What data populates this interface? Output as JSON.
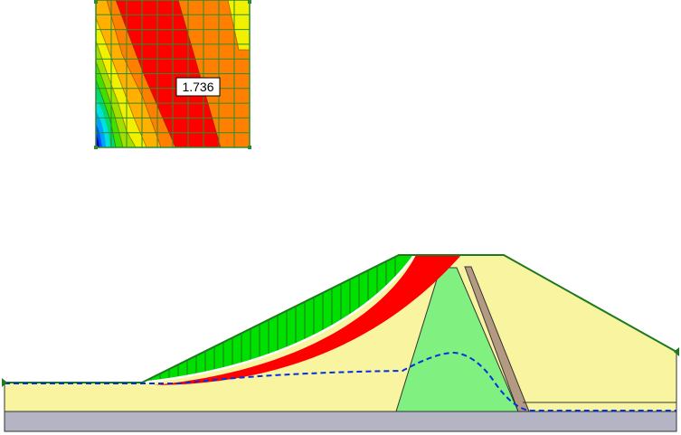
{
  "grid_panel": {
    "factor_of_safety_label": "1.736",
    "contour_colors": [
      "#0000c8",
      "#0050ff",
      "#00a0ff",
      "#00e0e0",
      "#00d870",
      "#40e000",
      "#a0e000",
      "#f0f000",
      "#ffb000",
      "#ff8000",
      "#ff0000"
    ],
    "grid_line_color": "#2e8b2e",
    "border_color": "#2e8b2e"
  },
  "dam_section": {
    "colors": {
      "foundation_bedrock": "#b4b4c4",
      "embankment_fill": "#f8f4a0",
      "core": "#80f080",
      "filter": "#b49a82",
      "slip_mass_slices": "#00e000",
      "critical_band": "#ff0000",
      "phreatic_line": "#0030e0",
      "outline": "#1e7a1e"
    }
  }
}
